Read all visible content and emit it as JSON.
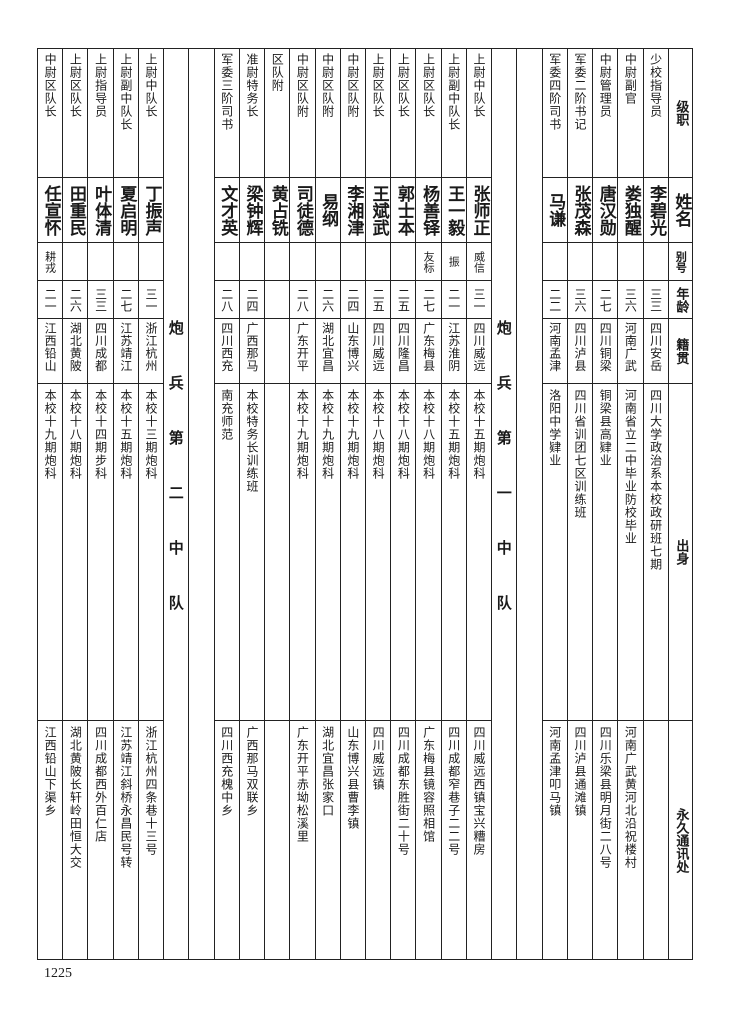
{
  "header": {
    "rank": "级职",
    "name": "姓名",
    "alias": "别号",
    "age": "年龄",
    "native": "籍贯",
    "origin": "出身",
    "address": "永久通讯处"
  },
  "sections": [
    {
      "label": "",
      "rows": [
        {
          "rank": "少校指导员",
          "name": "李碧光",
          "alias": "",
          "age": "三三",
          "native": "四川安岳",
          "origin": "四川大学政治系本校政研班七期",
          "address": ""
        },
        {
          "rank": "中尉副官",
          "name": "娄独醒",
          "alias": "",
          "age": "三六",
          "native": "河南广武",
          "origin": "河南省立二中毕业防校毕业",
          "address": "河南广武黄河北沿祝楼村"
        },
        {
          "rank": "中尉管理员",
          "name": "唐汉勋",
          "alias": "",
          "age": "二七",
          "native": "四川铜梁",
          "origin": "铜梁县高肄业",
          "address": "四川乐梁县明月街二八号"
        },
        {
          "rank": "军委二阶书记",
          "name": "张茂森",
          "alias": "",
          "age": "三六",
          "native": "四川泸县",
          "origin": "四川省训团七区训练班",
          "address": "四川泸县通滩镇"
        },
        {
          "rank": "军委四阶司书",
          "name": "马谦",
          "alias": "",
          "age": "二二",
          "native": "河南孟津",
          "origin": "洛阳中学肄业",
          "address": "河南孟津叩马镇"
        }
      ]
    },
    {
      "label": "炮兵第一中队",
      "rows": [
        {
          "rank": "上尉中队长",
          "name": "张师正",
          "alias": "威信",
          "age": "三一",
          "native": "四川威远",
          "origin": "本校十五期炮科",
          "address": "四川威远西镇宝兴糟房"
        },
        {
          "rank": "上尉副中队长",
          "name": "王一毅",
          "alias": "振",
          "age": "二一",
          "native": "江苏淮阴",
          "origin": "本校十五期炮科",
          "address": "四川成都窄巷子二二号"
        },
        {
          "rank": "上尉区队长",
          "name": "杨善铎",
          "alias": "友标",
          "age": "二七",
          "native": "广东梅县",
          "origin": "本校十八期炮科",
          "address": "广东梅县镜容照相馆"
        },
        {
          "rank": "上尉区队长",
          "name": "郭士本",
          "alias": "",
          "age": "二五",
          "native": "四川隆昌",
          "origin": "本校十八期炮科",
          "address": "四川成都东胜街二十号"
        },
        {
          "rank": "上尉区队长",
          "name": "王斌武",
          "alias": "",
          "age": "二五",
          "native": "四川威远",
          "origin": "本校十八期炮科",
          "address": "四川威远镇"
        },
        {
          "rank": "中尉区队附",
          "name": "李湘津",
          "alias": "",
          "age": "二四",
          "native": "山东博兴",
          "origin": "本校十九期炮科",
          "address": "山东博兴县曹李镇"
        },
        {
          "rank": "中尉区队附",
          "name": "易纲",
          "alias": "",
          "age": "二六",
          "native": "湖北宜昌",
          "origin": "本校十九期炮科",
          "address": "湖北宜昌张家口"
        },
        {
          "rank": "中尉区队附",
          "name": "司徒德",
          "alias": "",
          "age": "二八",
          "native": "广东开平",
          "origin": "本校十九期炮科",
          "address": "广东开平赤坳松溪里"
        },
        {
          "rank": "区队附",
          "name": "黄占铣",
          "alias": "",
          "age": "",
          "native": "",
          "origin": "",
          "address": ""
        },
        {
          "rank": "准尉特务长",
          "name": "梁钟辉",
          "alias": "",
          "age": "二四",
          "native": "广西那马",
          "origin": "本校特务长训练班",
          "address": "广西那马双联乡"
        },
        {
          "rank": "军委三阶司书",
          "name": "文才英",
          "alias": "",
          "age": "二八",
          "native": "四川西充",
          "origin": "南充师范",
          "address": "四川西充槐中乡"
        }
      ]
    },
    {
      "label": "炮兵第二中队",
      "rows": [
        {
          "rank": "上尉中队长",
          "name": "丁振声",
          "alias": "",
          "age": "三一",
          "native": "浙江杭州",
          "origin": "本校十三期炮科",
          "address": "浙江杭州四条巷十三号"
        },
        {
          "rank": "上尉副中队长",
          "name": "夏启明",
          "alias": "",
          "age": "二七",
          "native": "江苏靖江",
          "origin": "本校十五期炮科",
          "address": "江苏靖江斜桥永昌民号转"
        },
        {
          "rank": "上尉指导员",
          "name": "叶体清",
          "alias": "",
          "age": "三三",
          "native": "四川成都",
          "origin": "本校十四期步科",
          "address": "四川成都西外百仁店"
        },
        {
          "rank": "上尉区队长",
          "name": "田重民",
          "alias": "",
          "age": "二六",
          "native": "湖北黄陂",
          "origin": "本校十八期炮科",
          "address": "湖北黄陂长轩岭田恒大交"
        },
        {
          "rank": "中尉区队长",
          "name": "任宣怀",
          "alias": "耕戎",
          "age": "二一",
          "native": "江西铅山",
          "origin": "本校十九期炮科",
          "address": "江西铅山下渠乡"
        }
      ]
    }
  ],
  "page_number": "1225"
}
